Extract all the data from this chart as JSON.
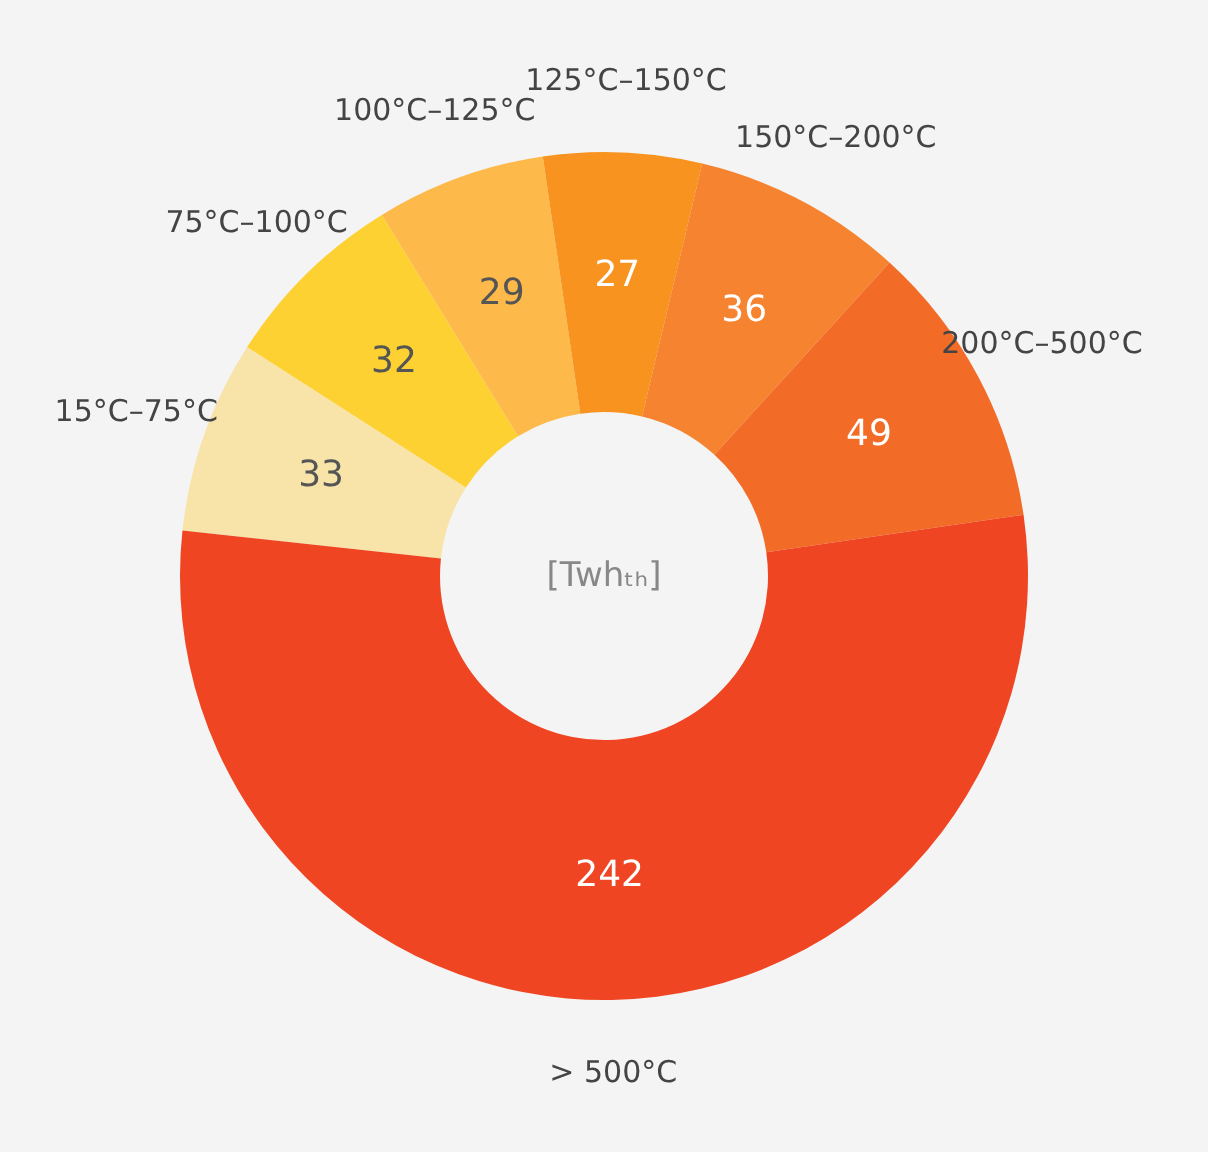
{
  "chart_data": {
    "type": "donut",
    "categories": [
      "15°C–75°C",
      "75°C–100°C",
      "100°C–125°C",
      "125°C–150°C",
      "150°C–200°C",
      "200°C–500°C",
      "> 500°C"
    ],
    "values": [
      33,
      32,
      29,
      27,
      36,
      49,
      242
    ],
    "colors": [
      "#f8e4a8",
      "#fed132",
      "#fdb94a",
      "#f7931e",
      "#f5832f",
      "#f26c27",
      "#f04523"
    ],
    "data_labels": true,
    "annotations": [
      "[Twhₜₕ]"
    ]
  }
}
